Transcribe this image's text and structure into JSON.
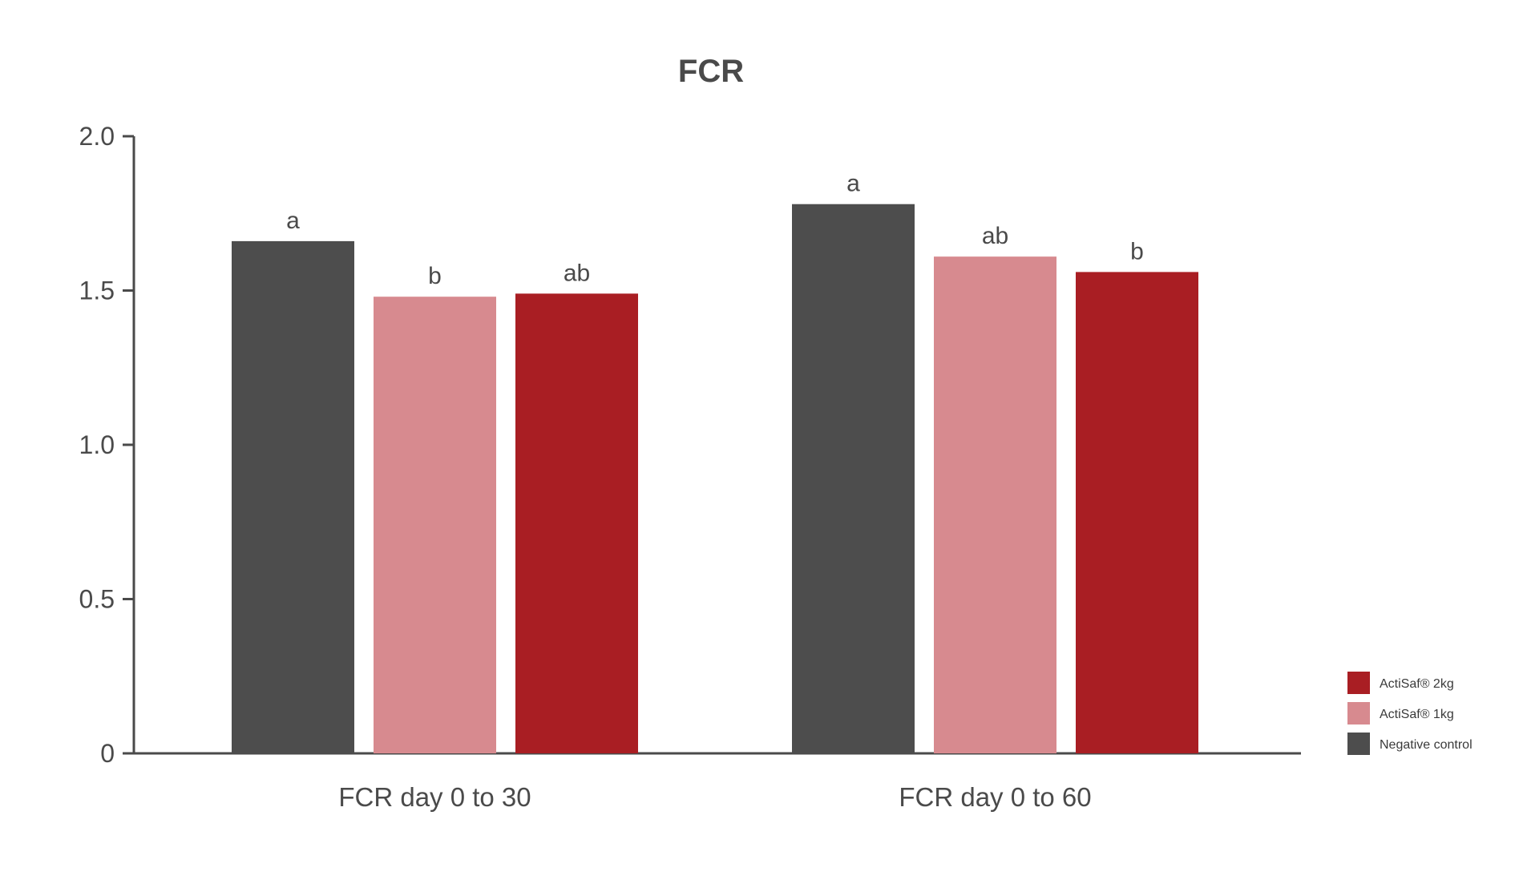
{
  "chart_data": {
    "type": "bar",
    "title": "FCR",
    "xlabel": "",
    "ylabel": "",
    "ylim": [
      0,
      2.0
    ],
    "yticks": [
      0,
      0.5,
      1.0,
      1.5,
      2.0
    ],
    "ytick_labels": [
      "0",
      "0.5",
      "1.0",
      "1.5",
      "2.0"
    ],
    "grid": false,
    "legend_position": "bottom-right",
    "categories": [
      "FCR day 0 to 30",
      "FCR day 0 to 60"
    ],
    "series": [
      {
        "name": "Negative control",
        "color": "#4d4d4d",
        "values": [
          1.66,
          1.78
        ],
        "annotations": [
          "a",
          "a"
        ]
      },
      {
        "name": "ActiSaf® 1kg",
        "color": "#d78a8f",
        "values": [
          1.48,
          1.61
        ],
        "annotations": [
          "b",
          "ab"
        ]
      },
      {
        "name": "ActiSaf® 2kg",
        "color": "#a91e23",
        "values": [
          1.49,
          1.56
        ],
        "annotations": [
          "ab",
          "b"
        ]
      }
    ],
    "legend_order": [
      "ActiSaf® 2kg",
      "ActiSaf® 1kg",
      "Negative control"
    ]
  }
}
